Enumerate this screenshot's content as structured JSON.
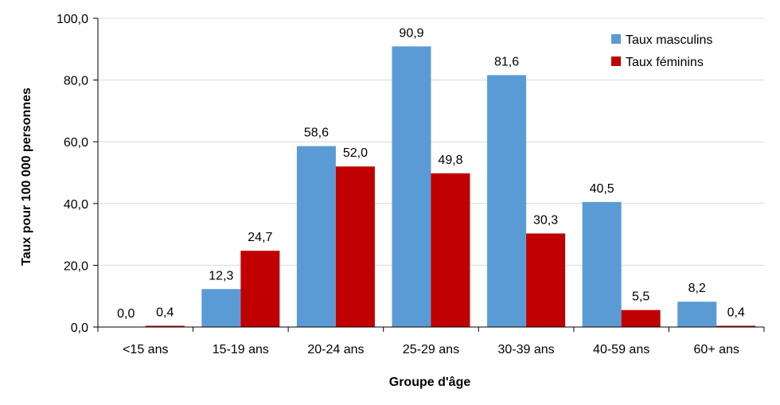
{
  "chart_data": {
    "type": "bar",
    "categories": [
      "<15 ans",
      "15-19 ans",
      "20-24 ans",
      "25-29 ans",
      "30-39 ans",
      "40-59 ans",
      "60+ ans"
    ],
    "series": [
      {
        "name": "Taux masculins",
        "color": "#5B9BD5",
        "values": [
          0.0,
          12.3,
          58.6,
          90.9,
          81.6,
          40.5,
          8.2
        ],
        "labels": [
          "0,0",
          "12,3",
          "58,6",
          "90,9",
          "81,6",
          "40,5",
          "8,2"
        ]
      },
      {
        "name": "Taux féminins",
        "color": "#C00000",
        "values": [
          0.4,
          24.7,
          52.0,
          49.8,
          30.3,
          5.5,
          0.4
        ],
        "labels": [
          "0,4",
          "24,7",
          "52,0",
          "49,8",
          "30,3",
          "5,5",
          "0,4"
        ]
      }
    ],
    "xlabel": "Groupe d'âge",
    "ylabel": "Taux pour 100 000 personnes",
    "ylim": [
      0,
      100
    ],
    "yticks": [
      0,
      20,
      40,
      60,
      80,
      100
    ],
    "ytick_labels": [
      "0,0",
      "20,0",
      "40,0",
      "60,0",
      "80,0",
      "100,0"
    ],
    "grid": true,
    "legend_position": "top-right"
  }
}
